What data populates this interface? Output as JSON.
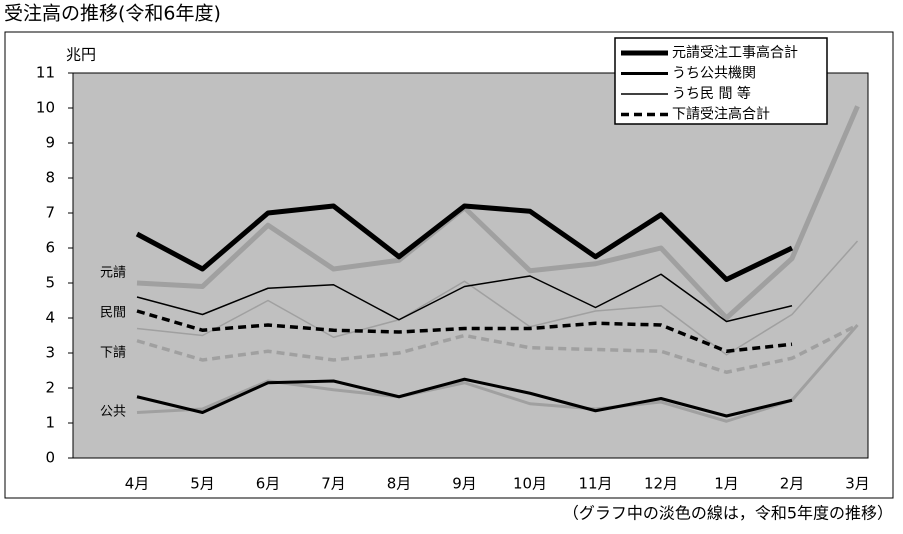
{
  "chart_data": {
    "type": "line",
    "title": "受注高の推移(令和6年度)",
    "y_axis_label": "兆円",
    "note": "（グラフ中の淡色の線は，令和5年度の推移）",
    "categories": [
      "4月",
      "5月",
      "6月",
      "7月",
      "8月",
      "9月",
      "10月",
      "11月",
      "12月",
      "1月",
      "2月",
      "3月"
    ],
    "ylim": [
      0,
      11
    ],
    "yticks": [
      0,
      1,
      2,
      3,
      4,
      5,
      6,
      7,
      8,
      9,
      10,
      11
    ],
    "background": "#c0c0c0",
    "legend": "top-right",
    "annotations": [
      "元請",
      "民間",
      "下請",
      "公共"
    ],
    "series": [
      {
        "name": "元請受注工事高合計",
        "color": "#000000",
        "width": 5,
        "dashed": false,
        "values": [
          6.4,
          5.4,
          7.0,
          7.2,
          5.75,
          7.2,
          7.05,
          5.75,
          6.95,
          5.1,
          6.0,
          null
        ]
      },
      {
        "name": "うち公共機関",
        "color": "#000000",
        "width": 3,
        "dashed": false,
        "values": [
          1.75,
          1.3,
          2.15,
          2.2,
          1.75,
          2.25,
          1.85,
          1.35,
          1.7,
          1.2,
          1.65,
          null
        ]
      },
      {
        "name": "うち民 間 等",
        "color": "#000000",
        "width": 1.5,
        "dashed": false,
        "values": [
          4.6,
          4.1,
          4.85,
          4.95,
          3.95,
          4.9,
          5.2,
          4.3,
          5.25,
          3.9,
          4.35,
          null
        ]
      },
      {
        "name": "下請受注高合計",
        "color": "#000000",
        "width": 3.5,
        "dashed": true,
        "values": [
          4.2,
          3.65,
          3.8,
          3.65,
          3.6,
          3.7,
          3.7,
          3.85,
          3.8,
          3.05,
          3.25,
          null
        ]
      }
    ],
    "comparison_series": [
      {
        "color": "#a0a0a0",
        "width": 5,
        "dashed": false,
        "values": [
          5.0,
          4.9,
          6.65,
          5.4,
          5.65,
          7.15,
          5.35,
          5.55,
          6.0,
          4.0,
          5.7,
          10.05
        ]
      },
      {
        "color": "#a0a0a0",
        "width": 3,
        "dashed": false,
        "values": [
          1.3,
          1.4,
          2.2,
          1.95,
          1.75,
          2.15,
          1.55,
          1.4,
          1.6,
          1.05,
          1.65,
          3.8
        ]
      },
      {
        "color": "#a0a0a0",
        "width": 1.5,
        "dashed": false,
        "values": [
          3.7,
          3.5,
          4.5,
          3.45,
          3.95,
          5.05,
          3.75,
          4.2,
          4.35,
          2.95,
          4.1,
          6.2
        ]
      },
      {
        "color": "#a0a0a0",
        "width": 3.5,
        "dashed": true,
        "values": [
          3.35,
          2.8,
          3.05,
          2.8,
          3.0,
          3.5,
          3.15,
          3.1,
          3.05,
          2.45,
          2.85,
          3.8
        ]
      }
    ]
  }
}
